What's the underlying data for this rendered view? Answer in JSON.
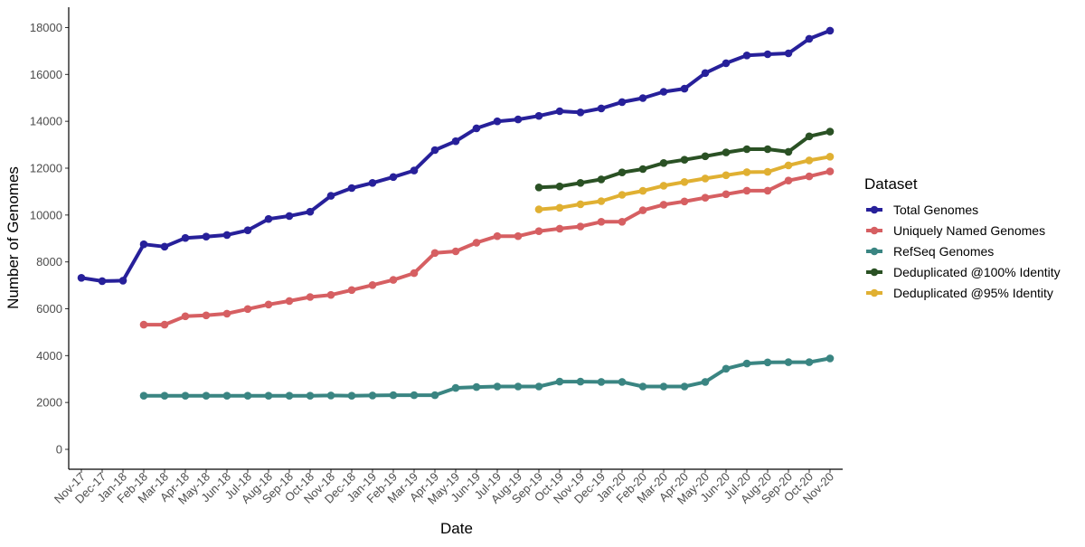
{
  "chart_data": {
    "type": "line",
    "xlabel": "Date",
    "ylabel": "Number of Genomes",
    "ylim": [
      0,
      18000
    ],
    "yticks": [
      0,
      2000,
      4000,
      6000,
      8000,
      10000,
      12000,
      14000,
      16000,
      18000
    ],
    "grid": false,
    "legend_position": "right",
    "legend_title": "Dataset",
    "x": [
      "Nov-17",
      "Dec-17",
      "Jan-18",
      "Feb-18",
      "Mar-18",
      "Apr-18",
      "May-18",
      "Jun-18",
      "Jul-18",
      "Aug-18",
      "Sep-18",
      "Oct-18",
      "Nov-18",
      "Dec-18",
      "Jan-19",
      "Feb-19",
      "Mar-19",
      "Apr-19",
      "May-19",
      "Jun-19",
      "Jul-19",
      "Aug-19",
      "Sep-19",
      "Oct-19",
      "Nov-19",
      "Dec-19",
      "Jan-20",
      "Feb-20",
      "Mar-20",
      "Apr-20",
      "May-20",
      "Jun-20",
      "Jul-20",
      "Aug-20",
      "Sep-20",
      "Oct-20",
      "Nov-20"
    ],
    "series": [
      {
        "name": "Total Genomes",
        "color": "#27209a",
        "values": [
          7320,
          7180,
          7200,
          8750,
          8650,
          9020,
          9080,
          9150,
          9350,
          9830,
          9960,
          10140,
          10820,
          11150,
          11370,
          11620,
          11900,
          12770,
          13150,
          13700,
          14000,
          14080,
          14230,
          14430,
          14380,
          14550,
          14820,
          14990,
          15260,
          15390,
          16060,
          16480,
          16810,
          16860,
          16900,
          17520,
          17870
        ]
      },
      {
        "name": "Uniquely Named Genomes",
        "color": "#d65f62",
        "values": [
          null,
          null,
          null,
          5320,
          5320,
          5680,
          5720,
          5790,
          5990,
          6180,
          6330,
          6500,
          6590,
          6800,
          7010,
          7230,
          7520,
          8380,
          8450,
          8820,
          9100,
          9100,
          9310,
          9420,
          9510,
          9710,
          9710,
          10200,
          10440,
          10580,
          10740,
          10890,
          11040,
          11040,
          11470,
          11650,
          11860
        ]
      },
      {
        "name": "RefSeq Genomes",
        "color": "#3a8582",
        "values": [
          null,
          null,
          null,
          2290,
          2290,
          2290,
          2290,
          2290,
          2290,
          2290,
          2290,
          2290,
          2300,
          2290,
          2300,
          2310,
          2310,
          2310,
          2620,
          2660,
          2680,
          2680,
          2680,
          2890,
          2890,
          2880,
          2880,
          2680,
          2680,
          2680,
          2880,
          3440,
          3660,
          3710,
          3720,
          3720,
          3880
        ]
      },
      {
        "name": "Deduplicated @100% Identity",
        "color": "#2a5124",
        "values": [
          null,
          null,
          null,
          null,
          null,
          null,
          null,
          null,
          null,
          null,
          null,
          null,
          null,
          null,
          null,
          null,
          null,
          null,
          null,
          null,
          null,
          null,
          11180,
          11220,
          11370,
          11520,
          11820,
          11960,
          12220,
          12360,
          12510,
          12670,
          12810,
          12810,
          12700,
          13360,
          13560
        ]
      },
      {
        "name": "Deduplicated @95% Identity",
        "color": "#e0b032",
        "values": [
          null,
          null,
          null,
          null,
          null,
          null,
          null,
          null,
          null,
          null,
          null,
          null,
          null,
          null,
          null,
          null,
          null,
          null,
          null,
          null,
          null,
          null,
          10240,
          10310,
          10460,
          10590,
          10860,
          11030,
          11250,
          11410,
          11560,
          11700,
          11830,
          11840,
          12120,
          12330,
          12490
        ]
      }
    ]
  }
}
